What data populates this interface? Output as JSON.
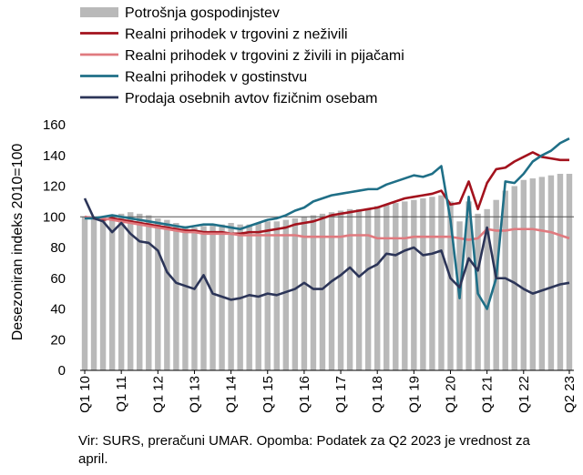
{
  "chart_data": {
    "type": "bar+line",
    "ylabel": "Desezoniran indeks 2010=100",
    "ylim": [
      0,
      160
    ],
    "yticks": [
      "0",
      "20",
      "40",
      "60",
      "80",
      "100",
      "120",
      "140",
      "160"
    ],
    "reference_line": 100,
    "x_tick_labels": [
      "Q1 10",
      "Q1 11",
      "Q1 12",
      "Q1 13",
      "Q1 14",
      "Q1 15",
      "Q1 16",
      "Q1 17",
      "Q1 18",
      "Q1 19",
      "Q1 20",
      "Q1 21",
      "Q1 22",
      "Q2 23"
    ],
    "x_tick_positions": [
      0,
      4,
      8,
      12,
      16,
      20,
      24,
      28,
      32,
      36,
      40,
      44,
      48,
      53
    ],
    "legend_position": "top",
    "bar_series": {
      "name": "Potrošnja gospodinjstev",
      "color": "#b9b9b9",
      "values": [
        100,
        99,
        100,
        101,
        102,
        103,
        102,
        101,
        99,
        98,
        96,
        94,
        93,
        94,
        95,
        95,
        96,
        95,
        95,
        96,
        97,
        97,
        98,
        99,
        100,
        101,
        102,
        103,
        104,
        105,
        105,
        105,
        107,
        108,
        109,
        110,
        111,
        112,
        113,
        114,
        110,
        97,
        110,
        102,
        105,
        111,
        117,
        120,
        124,
        125,
        126,
        127,
        128,
        128
      ]
    },
    "series": [
      {
        "name": "Realni prihodek v trgovini z neživili",
        "color": "#a3121d",
        "values": [
          100,
          99,
          98,
          99,
          98,
          97,
          96,
          95,
          94,
          93,
          92,
          91,
          91,
          90,
          90,
          90,
          89,
          89,
          90,
          90,
          91,
          92,
          93,
          95,
          96,
          97,
          99,
          101,
          102,
          103,
          104,
          105,
          106,
          108,
          110,
          112,
          113,
          114,
          115,
          117,
          108,
          109,
          123,
          105,
          122,
          131,
          132,
          136,
          139,
          142,
          139,
          138,
          137,
          137
        ]
      },
      {
        "name": "Realni prihodek v trgovini z živili in pijačami",
        "color": "#e07a7f",
        "values": [
          100,
          99,
          99,
          98,
          97,
          96,
          95,
          94,
          93,
          92,
          91,
          90,
          90,
          89,
          89,
          89,
          89,
          88,
          88,
          88,
          88,
          88,
          88,
          88,
          87,
          87,
          87,
          87,
          87,
          88,
          88,
          88,
          86,
          86,
          86,
          86,
          87,
          87,
          87,
          87,
          87,
          86,
          85,
          86,
          92,
          91,
          91,
          92,
          92,
          92,
          91,
          90,
          88,
          86
        ]
      },
      {
        "name": "Realni prihodek v gostinstvu",
        "color": "#1f6f87",
        "values": [
          99,
          99,
          100,
          101,
          100,
          99,
          98,
          97,
          96,
          95,
          94,
          93,
          94,
          95,
          95,
          94,
          93,
          92,
          94,
          96,
          98,
          99,
          101,
          104,
          106,
          110,
          112,
          114,
          115,
          116,
          117,
          118,
          118,
          121,
          123,
          125,
          127,
          126,
          128,
          133,
          98,
          47,
          113,
          50,
          40,
          60,
          123,
          122,
          128,
          136,
          140,
          143,
          148,
          151
        ]
      },
      {
        "name": "Prodaja osebnih avtov fizičnim osebam",
        "color": "#2c3558",
        "values": [
          112,
          99,
          97,
          90,
          96,
          89,
          84,
          83,
          78,
          64,
          57,
          55,
          53,
          62,
          50,
          48,
          46,
          47,
          49,
          48,
          50,
          49,
          51,
          53,
          57,
          53,
          53,
          58,
          62,
          67,
          61,
          66,
          69,
          76,
          75,
          78,
          80,
          75,
          76,
          78,
          60,
          54,
          73,
          65,
          93,
          60,
          60,
          57,
          53,
          50,
          52,
          54,
          56,
          57
        ]
      }
    ]
  },
  "note": "Vir: SURS, preračuni UMAR. Opomba: Podatek za Q2 2023 je vrednost za april."
}
